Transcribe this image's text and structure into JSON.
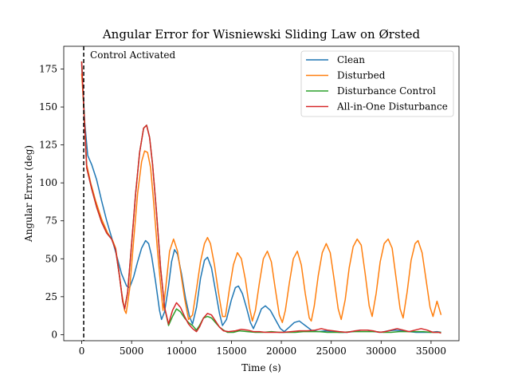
{
  "chart_data": {
    "type": "line",
    "title": "Angular Error for Wisniewski Sliding Law on Ørsted",
    "xlabel": "Time (s)",
    "ylabel": "Angular Error (deg)",
    "xlim": [
      -1800,
      37800
    ],
    "ylim": [
      -4,
      190
    ],
    "xticks": [
      0,
      5000,
      10000,
      15000,
      20000,
      25000,
      30000,
      35000
    ],
    "yticks": [
      0,
      25,
      50,
      75,
      100,
      125,
      150,
      175
    ],
    "grid": false,
    "legend_position": "top-right",
    "annotation": {
      "text": "Control Activated",
      "x": 200
    },
    "series": [
      {
        "name": "Clean",
        "color": "#1f77b4",
        "points": [
          [
            0,
            178
          ],
          [
            300,
            140
          ],
          [
            600,
            118
          ],
          [
            1000,
            112
          ],
          [
            1500,
            102
          ],
          [
            2000,
            88
          ],
          [
            2500,
            75
          ],
          [
            3000,
            64
          ],
          [
            3500,
            52
          ],
          [
            4000,
            40
          ],
          [
            4500,
            32
          ],
          [
            4800,
            31
          ],
          [
            5200,
            38
          ],
          [
            5600,
            48
          ],
          [
            6000,
            57
          ],
          [
            6400,
            62
          ],
          [
            6700,
            60
          ],
          [
            7000,
            52
          ],
          [
            7400,
            35
          ],
          [
            7800,
            16
          ],
          [
            8000,
            10
          ],
          [
            8300,
            15
          ],
          [
            8700,
            32
          ],
          [
            9000,
            48
          ],
          [
            9300,
            56
          ],
          [
            9600,
            53
          ],
          [
            10000,
            40
          ],
          [
            10400,
            24
          ],
          [
            10800,
            12
          ],
          [
            11100,
            7
          ],
          [
            11500,
            18
          ],
          [
            11900,
            37
          ],
          [
            12300,
            49
          ],
          [
            12600,
            51
          ],
          [
            13000,
            44
          ],
          [
            13400,
            29
          ],
          [
            13800,
            14
          ],
          [
            14100,
            6
          ],
          [
            14500,
            10
          ],
          [
            15000,
            23
          ],
          [
            15400,
            31
          ],
          [
            15700,
            32
          ],
          [
            16100,
            27
          ],
          [
            16500,
            18
          ],
          [
            16900,
            8
          ],
          [
            17200,
            4
          ],
          [
            17600,
            10
          ],
          [
            18000,
            17
          ],
          [
            18400,
            19
          ],
          [
            18900,
            16
          ],
          [
            19400,
            10
          ],
          [
            19900,
            4
          ],
          [
            20300,
            2
          ],
          [
            20800,
            5
          ],
          [
            21300,
            8
          ],
          [
            21800,
            9
          ],
          [
            22400,
            6
          ],
          [
            23000,
            3
          ],
          [
            23700,
            2
          ],
          [
            24400,
            2.5
          ],
          [
            25100,
            2
          ],
          [
            25800,
            1.5
          ],
          [
            26500,
            1.5
          ],
          [
            27200,
            2
          ],
          [
            27900,
            3
          ],
          [
            28600,
            3
          ],
          [
            29300,
            2
          ],
          [
            30000,
            1.5
          ],
          [
            30700,
            2.5
          ],
          [
            31400,
            3
          ],
          [
            32100,
            2.5
          ],
          [
            32800,
            2
          ],
          [
            33500,
            1.5
          ],
          [
            34200,
            1.5
          ],
          [
            34900,
            1.5
          ],
          [
            35600,
            2
          ],
          [
            36000,
            1.5
          ]
        ]
      },
      {
        "name": "Disturbed",
        "color": "#ff7f0e",
        "points": [
          [
            0,
            172
          ],
          [
            200,
            150
          ],
          [
            500,
            112
          ],
          [
            900,
            100
          ],
          [
            1400,
            88
          ],
          [
            2000,
            76
          ],
          [
            2600,
            67
          ],
          [
            3100,
            62
          ],
          [
            3400,
            57
          ],
          [
            3700,
            43
          ],
          [
            4000,
            28
          ],
          [
            4300,
            16
          ],
          [
            4450,
            14
          ],
          [
            4800,
            30
          ],
          [
            5200,
            62
          ],
          [
            5600,
            93
          ],
          [
            6000,
            114
          ],
          [
            6300,
            121
          ],
          [
            6600,
            120
          ],
          [
            6900,
            110
          ],
          [
            7200,
            88
          ],
          [
            7600,
            55
          ],
          [
            8000,
            26
          ],
          [
            8150,
            16
          ],
          [
            8400,
            30
          ],
          [
            8800,
            55
          ],
          [
            9200,
            63
          ],
          [
            9600,
            55
          ],
          [
            9900,
            42
          ],
          [
            10300,
            24
          ],
          [
            10700,
            10
          ],
          [
            11100,
            13
          ],
          [
            11500,
            30
          ],
          [
            11900,
            48
          ],
          [
            12300,
            60
          ],
          [
            12600,
            64
          ],
          [
            12900,
            60
          ],
          [
            13300,
            46
          ],
          [
            13700,
            28
          ],
          [
            14100,
            12
          ],
          [
            14400,
            12
          ],
          [
            14800,
            30
          ],
          [
            15200,
            46
          ],
          [
            15600,
            54
          ],
          [
            16000,
            50
          ],
          [
            16400,
            36
          ],
          [
            16800,
            18
          ],
          [
            17100,
            9
          ],
          [
            17400,
            16
          ],
          [
            17800,
            34
          ],
          [
            18200,
            50
          ],
          [
            18600,
            55
          ],
          [
            19000,
            48
          ],
          [
            19400,
            30
          ],
          [
            19800,
            13
          ],
          [
            20100,
            8
          ],
          [
            20400,
            16
          ],
          [
            20800,
            34
          ],
          [
            21200,
            50
          ],
          [
            21600,
            55
          ],
          [
            22000,
            46
          ],
          [
            22400,
            27
          ],
          [
            22800,
            11
          ],
          [
            23000,
            9
          ],
          [
            23300,
            19
          ],
          [
            23700,
            39
          ],
          [
            24100,
            54
          ],
          [
            24500,
            60
          ],
          [
            24900,
            54
          ],
          [
            25300,
            36
          ],
          [
            25700,
            17
          ],
          [
            26000,
            10
          ],
          [
            26400,
            23
          ],
          [
            26800,
            44
          ],
          [
            27200,
            58
          ],
          [
            27600,
            63
          ],
          [
            28000,
            59
          ],
          [
            28400,
            40
          ],
          [
            28800,
            19
          ],
          [
            29100,
            12
          ],
          [
            29500,
            27
          ],
          [
            29900,
            48
          ],
          [
            30300,
            60
          ],
          [
            30700,
            63
          ],
          [
            31100,
            57
          ],
          [
            31500,
            37
          ],
          [
            31900,
            17
          ],
          [
            32200,
            11
          ],
          [
            32600,
            28
          ],
          [
            33000,
            49
          ],
          [
            33400,
            60
          ],
          [
            33700,
            62
          ],
          [
            34100,
            54
          ],
          [
            34500,
            36
          ],
          [
            34900,
            18
          ],
          [
            35200,
            12
          ],
          [
            35600,
            22
          ],
          [
            36000,
            13
          ]
        ]
      },
      {
        "name": "Disturbance Control",
        "color": "#2ca02c",
        "points": [
          [
            0,
            180
          ],
          [
            200,
            150
          ],
          [
            500,
            110
          ],
          [
            1000,
            96
          ],
          [
            1500,
            84
          ],
          [
            2000,
            74
          ],
          [
            2500,
            67
          ],
          [
            3000,
            63
          ],
          [
            3400,
            56
          ],
          [
            3800,
            38
          ],
          [
            4100,
            22
          ],
          [
            4300,
            17
          ],
          [
            4600,
            28
          ],
          [
            5000,
            60
          ],
          [
            5400,
            93
          ],
          [
            5800,
            120
          ],
          [
            6200,
            136
          ],
          [
            6500,
            138
          ],
          [
            6800,
            130
          ],
          [
            7100,
            112
          ],
          [
            7500,
            80
          ],
          [
            7900,
            44
          ],
          [
            8300,
            18
          ],
          [
            8700,
            6
          ],
          [
            9100,
            12
          ],
          [
            9500,
            17
          ],
          [
            9900,
            15
          ],
          [
            10300,
            11
          ],
          [
            10700,
            8
          ],
          [
            11100,
            6
          ],
          [
            11500,
            3
          ],
          [
            11800,
            6
          ],
          [
            12200,
            11
          ],
          [
            12600,
            12
          ],
          [
            13000,
            11
          ],
          [
            13400,
            8
          ],
          [
            13800,
            5
          ],
          [
            14200,
            3
          ],
          [
            14600,
            1.5
          ],
          [
            15200,
            1.5
          ],
          [
            15800,
            2.5
          ],
          [
            16600,
            2
          ],
          [
            17400,
            1.5
          ],
          [
            18200,
            1.5
          ],
          [
            19000,
            2
          ],
          [
            19800,
            1.5
          ],
          [
            20600,
            1.5
          ],
          [
            21400,
            1.5
          ],
          [
            22200,
            2
          ],
          [
            23000,
            2
          ],
          [
            23800,
            2
          ],
          [
            24600,
            1.5
          ],
          [
            25400,
            1.5
          ],
          [
            26200,
            1.5
          ],
          [
            27000,
            2
          ],
          [
            27800,
            2
          ],
          [
            28600,
            2
          ],
          [
            29400,
            2
          ],
          [
            30200,
            1.5
          ],
          [
            31000,
            1.5
          ],
          [
            31800,
            2
          ],
          [
            32600,
            2
          ],
          [
            33400,
            2
          ],
          [
            34200,
            2
          ],
          [
            35000,
            1.5
          ],
          [
            36000,
            1.5
          ]
        ]
      },
      {
        "name": "All-in-One Disturbance",
        "color": "#d62728",
        "points": [
          [
            0,
            180
          ],
          [
            200,
            150
          ],
          [
            500,
            110
          ],
          [
            1000,
            96
          ],
          [
            1500,
            84
          ],
          [
            2000,
            74
          ],
          [
            2500,
            67
          ],
          [
            3000,
            63
          ],
          [
            3400,
            56
          ],
          [
            3800,
            38
          ],
          [
            4100,
            22
          ],
          [
            4300,
            17
          ],
          [
            4600,
            28
          ],
          [
            5000,
            60
          ],
          [
            5400,
            93
          ],
          [
            5800,
            120
          ],
          [
            6200,
            136
          ],
          [
            6500,
            138
          ],
          [
            6800,
            130
          ],
          [
            7100,
            112
          ],
          [
            7500,
            80
          ],
          [
            7900,
            44
          ],
          [
            8300,
            18
          ],
          [
            8700,
            7
          ],
          [
            9100,
            16
          ],
          [
            9500,
            21
          ],
          [
            9900,
            18
          ],
          [
            10300,
            12
          ],
          [
            10700,
            7
          ],
          [
            11100,
            4
          ],
          [
            11500,
            2
          ],
          [
            11800,
            5
          ],
          [
            12200,
            11
          ],
          [
            12600,
            14
          ],
          [
            13000,
            13
          ],
          [
            13400,
            9
          ],
          [
            13800,
            5
          ],
          [
            14200,
            2.5
          ],
          [
            14700,
            2
          ],
          [
            15400,
            2.5
          ],
          [
            16000,
            3.5
          ],
          [
            16600,
            3
          ],
          [
            17200,
            2
          ],
          [
            17800,
            2
          ],
          [
            18400,
            1.5
          ],
          [
            19000,
            1.5
          ],
          [
            19600,
            1.5
          ],
          [
            20200,
            1.5
          ],
          [
            21000,
            2
          ],
          [
            21800,
            2.5
          ],
          [
            22600,
            2.5
          ],
          [
            23400,
            3
          ],
          [
            24000,
            4
          ],
          [
            24600,
            3
          ],
          [
            25200,
            2.5
          ],
          [
            25800,
            2
          ],
          [
            26600,
            1.5
          ],
          [
            27400,
            2.5
          ],
          [
            28000,
            3
          ],
          [
            28600,
            3
          ],
          [
            29200,
            2.5
          ],
          [
            29800,
            1.5
          ],
          [
            30400,
            2
          ],
          [
            31000,
            3
          ],
          [
            31600,
            4
          ],
          [
            32200,
            3
          ],
          [
            32800,
            2
          ],
          [
            33400,
            3
          ],
          [
            34000,
            4
          ],
          [
            34600,
            3
          ],
          [
            35200,
            1.5
          ],
          [
            35800,
            1.5
          ],
          [
            36000,
            1
          ]
        ]
      }
    ]
  }
}
